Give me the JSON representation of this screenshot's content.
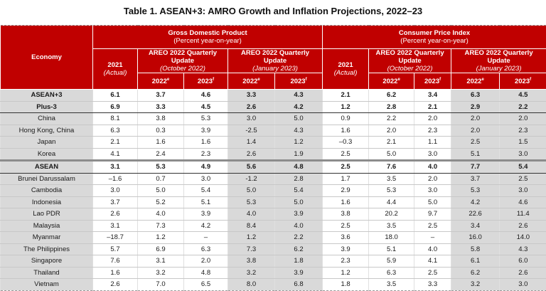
{
  "title": "Table 1. ASEAN+3: AMRO Growth and Inflation Projections, 2022–23",
  "header": {
    "economy": "Economy",
    "gdp": {
      "title": "Gross Domestic Product",
      "unit": "(Percent year-on-year)"
    },
    "cpi": {
      "title": "Consumer Price Index",
      "unit": "(Percent year-on-year)"
    },
    "actual_year": "2021",
    "actual_label": "(Actual)",
    "oct_title": "AREO 2022 Quarterly Update",
    "oct_date": "(October 2022)",
    "jan_title": "AREO 2022 Quarterly Update",
    "jan_date": "(January 2023)",
    "y2022": "2022",
    "y2022_sup": "e",
    "y2023": "2023",
    "y2023_sup": "f"
  },
  "rows": [
    {
      "economy": "ASEAN+3",
      "level": 0,
      "values": [
        "6.1",
        "3.7",
        "4.6",
        "3.3",
        "4.3",
        "2.1",
        "6.2",
        "3.4",
        "6.3",
        "4.5"
      ]
    },
    {
      "economy": "Plus-3",
      "level": 1,
      "values": [
        "6.9",
        "3.3",
        "4.5",
        "2.6",
        "4.2",
        "1.2",
        "2.8",
        "2.1",
        "2.9",
        "2.2"
      ]
    },
    {
      "economy": "China",
      "level": 2,
      "values": [
        "8.1",
        "3.8",
        "5.3",
        "3.0",
        "5.0",
        "0.9",
        "2.2",
        "2.0",
        "2.0",
        "2.0"
      ]
    },
    {
      "economy": "Hong Kong, China",
      "level": 2,
      "values": [
        "6.3",
        "0.3",
        "3.9",
        "-2.5",
        "4.3",
        "1.6",
        "2.0",
        "2.3",
        "2.0",
        "2.3"
      ]
    },
    {
      "economy": "Japan",
      "level": 2,
      "values": [
        "2.1",
        "1.6",
        "1.6",
        "1.4",
        "1.2",
        "–0.3",
        "2.1",
        "1.1",
        "2.5",
        "1.5"
      ]
    },
    {
      "economy": "Korea",
      "level": 2,
      "values": [
        "4.1",
        "2.4",
        "2.3",
        "2.6",
        "1.9",
        "2.5",
        "5.0",
        "3.0",
        "5.1",
        "3.0"
      ]
    },
    {
      "economy": "ASEAN",
      "level": 1,
      "values": [
        "3.1",
        "5.3",
        "4.9",
        "5.6",
        "4.8",
        "2.5",
        "7.6",
        "4.0",
        "7.7",
        "5.4"
      ]
    },
    {
      "economy": "Brunei Darussalam",
      "level": 2,
      "values": [
        "–1.6",
        "0.7",
        "3.0",
        "-1.2",
        "2.8",
        "1.7",
        "3.5",
        "2.0",
        "3.7",
        "2.5"
      ]
    },
    {
      "economy": "Cambodia",
      "level": 2,
      "values": [
        "3.0",
        "5.0",
        "5.4",
        "5.0",
        "5.4",
        "2.9",
        "5.3",
        "3.0",
        "5.3",
        "3.0"
      ]
    },
    {
      "economy": "Indonesia",
      "level": 2,
      "values": [
        "3.7",
        "5.2",
        "5.1",
        "5.3",
        "5.0",
        "1.6",
        "4.4",
        "5.0",
        "4.2",
        "4.6"
      ]
    },
    {
      "economy": "Lao PDR",
      "level": 2,
      "values": [
        "2.6",
        "4.0",
        "3.9",
        "4.0",
        "3.9",
        "3.8",
        "20.2",
        "9.7",
        "22.6",
        "11.4"
      ]
    },
    {
      "economy": "Malaysia",
      "level": 2,
      "values": [
        "3.1",
        "7.3",
        "4.2",
        "8.4",
        "4.0",
        "2.5",
        "3.5",
        "2.5",
        "3.4",
        "2.6"
      ]
    },
    {
      "economy": "Myanmar",
      "level": 2,
      "values": [
        "–18.7",
        "1.2",
        "–",
        "1.2",
        "2.2",
        "3.6",
        "18.0",
        "–",
        "16.0",
        "14.0"
      ]
    },
    {
      "economy": "The Philippines",
      "level": 2,
      "values": [
        "5.7",
        "6.9",
        "6.3",
        "7.3",
        "6.2",
        "3.9",
        "5.1",
        "4.0",
        "5.8",
        "4.3"
      ]
    },
    {
      "economy": "Singapore",
      "level": 2,
      "values": [
        "7.6",
        "3.1",
        "2.0",
        "3.8",
        "1.8",
        "2.3",
        "5.9",
        "4.1",
        "6.1",
        "6.0"
      ]
    },
    {
      "economy": "Thailand",
      "level": 2,
      "values": [
        "1.6",
        "3.2",
        "4.8",
        "3.2",
        "3.9",
        "1.2",
        "6.3",
        "2.5",
        "6.2",
        "2.6"
      ]
    },
    {
      "economy": "Vietnam",
      "level": 2,
      "values": [
        "2.6",
        "7.0",
        "6.5",
        "8.0",
        "6.8",
        "1.8",
        "3.5",
        "3.3",
        "3.2",
        "3.0"
      ]
    }
  ],
  "colors": {
    "header_red": "#c00000",
    "shade_gray": "#d9d9d9"
  }
}
